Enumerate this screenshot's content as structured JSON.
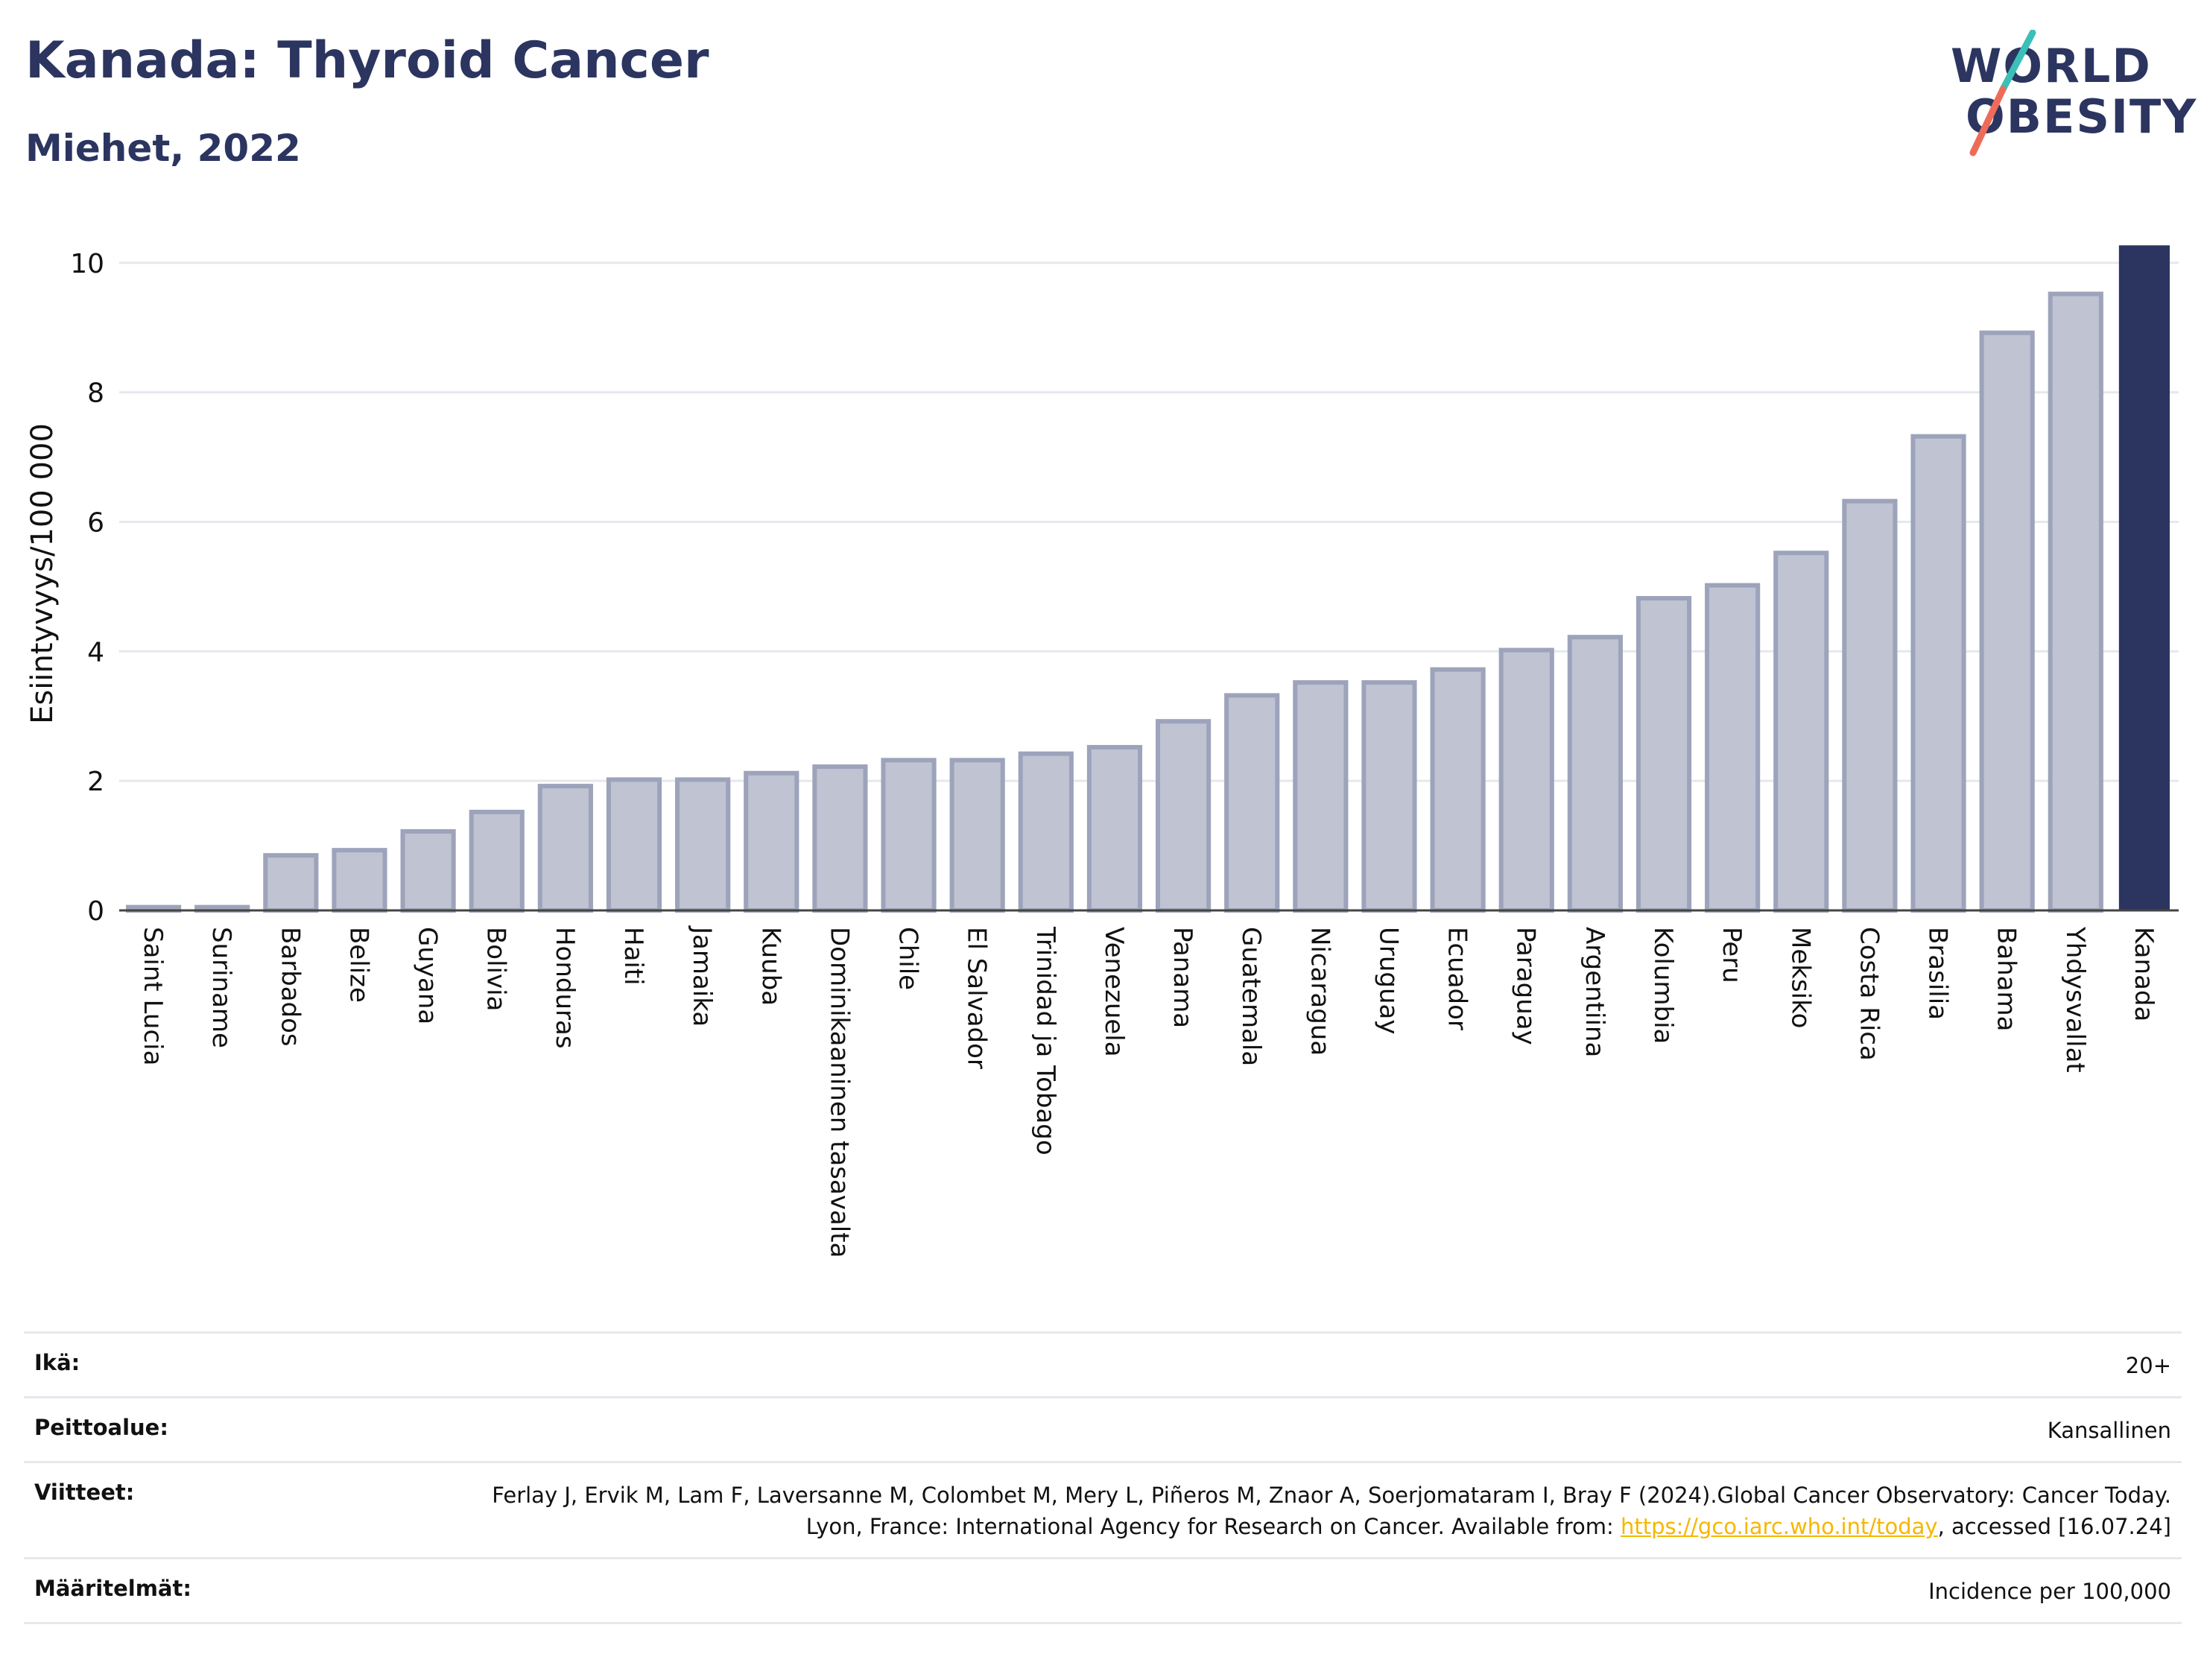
{
  "header": {
    "title": "Kanada: Thyroid Cancer",
    "subtitle": "Miehet, 2022"
  },
  "logo": {
    "line1": "WORLD",
    "line2": "OBESITY",
    "colors": {
      "text": "#2b3560",
      "teal": "#3bbfb8",
      "coral": "#ee6b5a"
    }
  },
  "colors": {
    "bar": "#bfc3d2",
    "bar_border": "#9da3ba",
    "highlight": "#2b3560",
    "grid": "#e6e8ee",
    "axis_text": "#111111"
  },
  "chart_data": {
    "type": "bar",
    "ylabel": "Esiintyvyys/100 000",
    "ylim": [
      0,
      10.4
    ],
    "yticks": [
      0,
      2,
      4,
      6,
      8,
      10
    ],
    "grid": true,
    "highlight_category": "Kanada",
    "categories": [
      "Saint Lucia",
      "Suriname",
      "Barbados",
      "Belize",
      "Guyana",
      "Bolivia",
      "Honduras",
      "Haiti",
      "Jamaika",
      "Kuuba",
      "Dominikaaninen tasavalta",
      "Chile",
      "El Salvador",
      "Trinidad ja Tobago",
      "Venezuela",
      "Panama",
      "Guatemala",
      "Nicaragua",
      "Uruguay",
      "Ecuador",
      "Paraguay",
      "Argentiina",
      "Kolumbia",
      "Peru",
      "Meksiko",
      "Costa Rica",
      "Brasilia",
      "Bahama",
      "Yhdysvallat",
      "Kanada"
    ],
    "values": [
      0.05,
      0.05,
      0.85,
      0.93,
      1.22,
      1.52,
      1.92,
      2.02,
      2.02,
      2.12,
      2.22,
      2.32,
      2.32,
      2.42,
      2.52,
      2.92,
      3.32,
      3.52,
      3.52,
      3.72,
      4.02,
      4.22,
      4.82,
      5.02,
      5.52,
      6.32,
      7.32,
      8.92,
      9.52,
      10.27
    ]
  },
  "info": {
    "rows": [
      {
        "label": "Ikä:",
        "value": "20+"
      },
      {
        "label": "Peittoalue:",
        "value": "Kansallinen"
      },
      {
        "label": "Viitteet:",
        "value_pre": "Ferlay J, Ervik M, Lam F, Laversanne M, Colombet M, Mery L, Piñeros M, Znaor A, Soerjomataram I, Bray F (2024).Global Cancer Observatory: Cancer Today. Lyon, France: International Agency for Research on Cancer. Available from: ",
        "link": "https://gco.iarc.who.int/today",
        "value_post": ", accessed [16.07.24]"
      },
      {
        "label": "Määritelmät:",
        "value": "Incidence per 100,000"
      }
    ]
  }
}
